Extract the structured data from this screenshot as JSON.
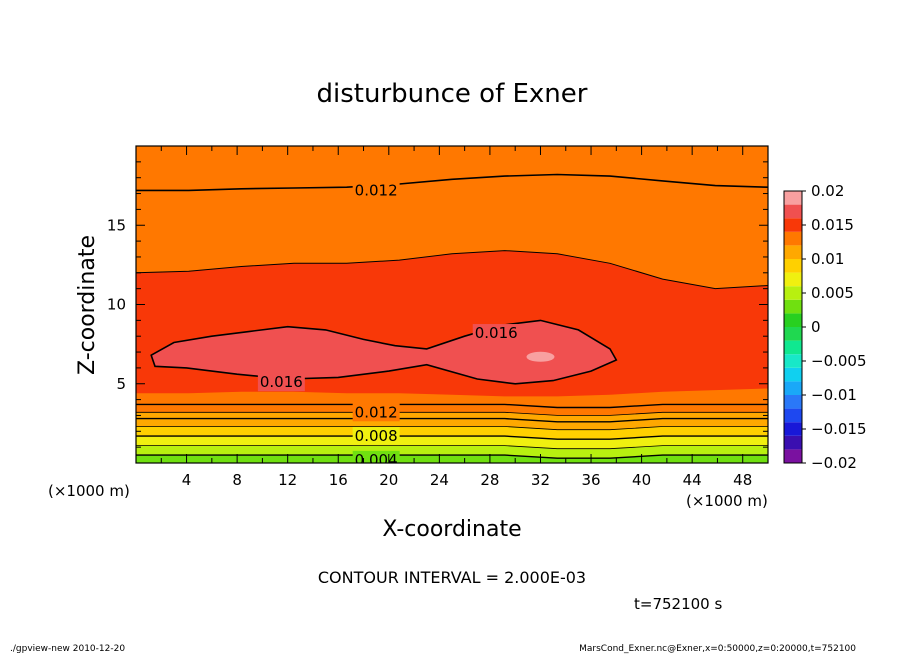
{
  "chart_data": {
    "type": "heatmap",
    "subtype": "filled-contour",
    "title": "disturbunce of Exner",
    "xlabel": "X-coordinate",
    "ylabel": "Z-coordinate",
    "x_unit": "(×1000 m)",
    "z_unit": "(×1000 m)",
    "xlim": [
      0,
      50
    ],
    "ylim": [
      0,
      20
    ],
    "x_ticks": [
      4,
      8,
      12,
      16,
      20,
      24,
      28,
      32,
      36,
      40,
      44,
      48
    ],
    "y_ticks": [
      5,
      10,
      15
    ],
    "contour_interval_text": "CONTOUR INTERVAL = 2.000E-03",
    "time_text": "t=752100 s",
    "colorbar": {
      "ticks": [
        "0.02",
        "0.015",
        "0.01",
        "0.005",
        "0",
        "-0.005",
        "-0.01",
        "-0.015",
        "-0.02"
      ],
      "range": [
        -0.02,
        0.02
      ],
      "levels": [
        {
          "lo": -0.02,
          "hi": -0.018,
          "color": "#7a11a0"
        },
        {
          "lo": -0.018,
          "hi": -0.016,
          "color": "#3a0fb0"
        },
        {
          "lo": -0.016,
          "hi": -0.014,
          "color": "#1818d8"
        },
        {
          "lo": -0.014,
          "hi": -0.012,
          "color": "#1e48f0"
        },
        {
          "lo": -0.012,
          "hi": -0.01,
          "color": "#2a78f8"
        },
        {
          "lo": -0.01,
          "hi": -0.008,
          "color": "#1aa8f8"
        },
        {
          "lo": -0.008,
          "hi": -0.006,
          "color": "#10d0f0"
        },
        {
          "lo": -0.006,
          "hi": -0.004,
          "color": "#18e8c8"
        },
        {
          "lo": -0.004,
          "hi": -0.002,
          "color": "#10e890"
        },
        {
          "lo": -0.002,
          "hi": 0.0,
          "color": "#20d850"
        },
        {
          "lo": 0.0,
          "hi": 0.002,
          "color": "#28d020"
        },
        {
          "lo": 0.002,
          "hi": 0.004,
          "color": "#70e010"
        },
        {
          "lo": 0.004,
          "hi": 0.006,
          "color": "#b8f010"
        },
        {
          "lo": 0.006,
          "hi": 0.008,
          "color": "#f0f010"
        },
        {
          "lo": 0.008,
          "hi": 0.01,
          "color": "#ffd000"
        },
        {
          "lo": 0.01,
          "hi": 0.012,
          "color": "#ffa800"
        },
        {
          "lo": 0.012,
          "hi": 0.014,
          "color": "#ff7800"
        },
        {
          "lo": 0.014,
          "hi": 0.016,
          "color": "#f83808"
        },
        {
          "lo": 0.016,
          "hi": 0.018,
          "color": "#f05050"
        },
        {
          "lo": 0.018,
          "hi": 0.02,
          "color": "#f8a0a0"
        }
      ]
    },
    "contour_bands": [
      {
        "level": 0.014,
        "color": "#ff7800",
        "z_top": [
          17.2,
          17.2,
          17.3,
          17.35,
          17.4,
          17.6,
          17.9,
          18.1,
          18.2,
          18.1,
          17.8,
          17.5,
          17.4
        ],
        "z_bottom": [
          3.2,
          3.2,
          3.3,
          3.3,
          3.3,
          3.35,
          3.25,
          3.2,
          3.3,
          3.45,
          3.6,
          3.7,
          3.8
        ]
      },
      {
        "level": 0.016,
        "color": "#f83808",
        "z_top": [
          12.0,
          12.1,
          12.4,
          12.6,
          12.6,
          12.8,
          13.2,
          13.4,
          13.2,
          12.6,
          11.6,
          11.0,
          11.2
        ],
        "z_bottom": [
          4.4,
          4.4,
          4.5,
          4.5,
          4.4,
          4.4,
          4.3,
          4.2,
          4.2,
          4.3,
          4.5,
          4.6,
          4.7
        ]
      }
    ],
    "contour_labels": [
      {
        "text": "0.012",
        "x": 19.0,
        "z": 17.2
      },
      {
        "text": "0.016",
        "x": 28.5,
        "z": 8.2
      },
      {
        "text": "0.016",
        "x": 11.5,
        "z": 5.1
      },
      {
        "text": "0.012",
        "x": 19.0,
        "z": 3.2
      },
      {
        "text": "0.008",
        "x": 19.0,
        "z": 1.7
      },
      {
        "text": "0.004",
        "x": 19.0,
        "z": 0.2
      }
    ]
  },
  "footer": {
    "left": "./gpview-new  2010-12-20",
    "right": "MarsCond_Exner.nc@Exner,x=0:50000,z=0:20000,t=752100"
  }
}
